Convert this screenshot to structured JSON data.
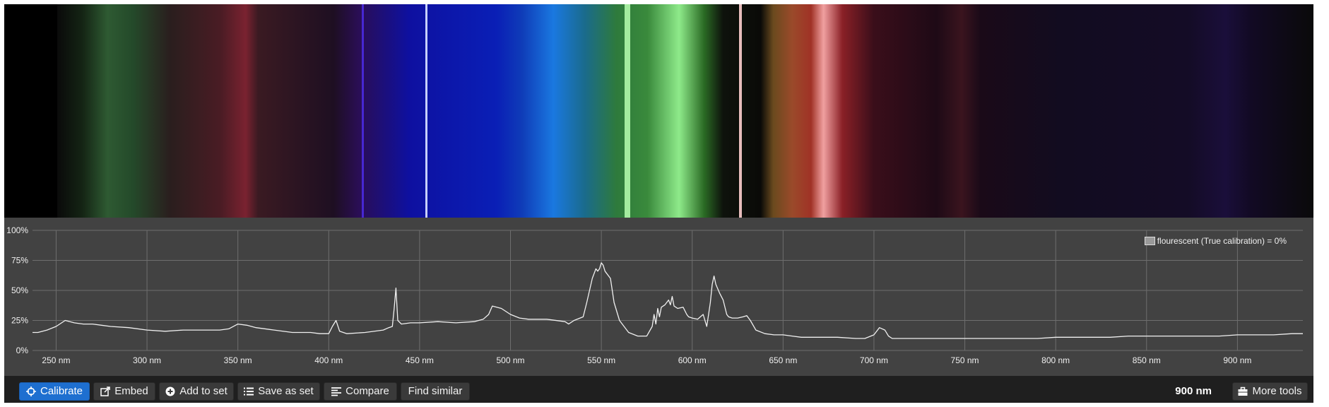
{
  "legend": {
    "label": "flourescent (True calibration) = 0%",
    "swatch_color": "#9a9a9a"
  },
  "toolbar": {
    "calibrate_label": "Calibrate",
    "embed_label": "Embed",
    "add_to_set_label": "Add to set",
    "save_as_set_label": "Save as set",
    "compare_label": "Compare",
    "find_similar_label": "Find similar",
    "wavelength_readout": "900 nm",
    "more_tools_label": "More tools"
  },
  "colors": {
    "accent": "#1e6fd0",
    "graph_bg": "#424242",
    "toolbar_bg": "#1f1f1f",
    "line": "#f0f0f0"
  },
  "chart_data": {
    "type": "line",
    "title": "",
    "xlabel": "",
    "ylabel": "",
    "xlim": [
      237,
      936
    ],
    "ylim": [
      0,
      100
    ],
    "x_ticks": [
      250,
      300,
      350,
      400,
      450,
      500,
      550,
      600,
      650,
      700,
      750,
      800,
      850,
      900
    ],
    "x_tick_labels": [
      "250 nm",
      "300 nm",
      "350 nm",
      "400 nm",
      "450 nm",
      "500 nm",
      "550 nm",
      "600 nm",
      "650 nm",
      "700 nm",
      "750 nm",
      "800 nm",
      "850 nm",
      "900 nm"
    ],
    "y_ticks": [
      0,
      25,
      50,
      75,
      100
    ],
    "y_tick_labels": [
      "0%",
      "25%",
      "50%",
      "75%",
      "100%"
    ],
    "grid": true,
    "legend_position": "top-right",
    "series": [
      {
        "name": "flourescent (True calibration) = 0%",
        "x": [
          237,
          240,
          245,
          250,
          255,
          260,
          265,
          270,
          275,
          280,
          290,
          300,
          310,
          320,
          330,
          340,
          345,
          350,
          355,
          360,
          370,
          380,
          390,
          395,
          400,
          402,
          404,
          406,
          410,
          420,
          430,
          433,
          435,
          436,
          437,
          438,
          440,
          445,
          450,
          460,
          470,
          480,
          485,
          488,
          490,
          495,
          500,
          505,
          510,
          520,
          530,
          532,
          535,
          540,
          542,
          545,
          547,
          548,
          549,
          550,
          551,
          552,
          555,
          557,
          560,
          565,
          570,
          575,
          578,
          579,
          580,
          581,
          582,
          583,
          585,
          587,
          588,
          589,
          590,
          592,
          595,
          597,
          598,
          600,
          603,
          606,
          608,
          609,
          610,
          611,
          612,
          613,
          615,
          617,
          619,
          620,
          622,
          625,
          628,
          630,
          632,
          635,
          640,
          645,
          650,
          655,
          660,
          670,
          680,
          690,
          695,
          700,
          703,
          706,
          708,
          710,
          715,
          720,
          730,
          740,
          750,
          760,
          770,
          780,
          790,
          800,
          810,
          820,
          830,
          840,
          850,
          860,
          870,
          880,
          890,
          900,
          910,
          920,
          930,
          936
        ],
        "y": [
          15,
          15,
          17,
          20,
          25,
          23,
          22,
          22,
          21,
          20,
          19,
          17,
          16,
          17,
          17,
          17,
          18,
          22,
          21,
          19,
          17,
          15,
          15,
          14,
          14,
          20,
          25,
          16,
          14,
          15,
          17,
          19,
          20,
          35,
          52,
          25,
          22,
          23,
          23,
          24,
          23,
          24,
          26,
          30,
          37,
          35,
          30,
          27,
          26,
          26,
          24,
          22,
          25,
          28,
          40,
          60,
          68,
          66,
          68,
          73,
          71,
          66,
          60,
          40,
          25,
          15,
          12,
          12,
          20,
          30,
          22,
          35,
          28,
          36,
          38,
          42,
          38,
          45,
          37,
          35,
          36,
          30,
          28,
          27,
          26,
          30,
          20,
          30,
          40,
          55,
          62,
          55,
          48,
          42,
          30,
          28,
          27,
          27,
          28,
          29,
          25,
          17,
          14,
          13,
          13,
          12,
          11,
          11,
          11,
          10,
          10,
          13,
          19,
          17,
          12,
          10,
          10,
          10,
          10,
          10,
          10,
          10,
          10,
          10,
          10,
          11,
          11,
          11,
          11,
          12,
          12,
          12,
          12,
          12,
          12,
          13,
          13,
          13,
          14,
          14
        ]
      }
    ]
  }
}
